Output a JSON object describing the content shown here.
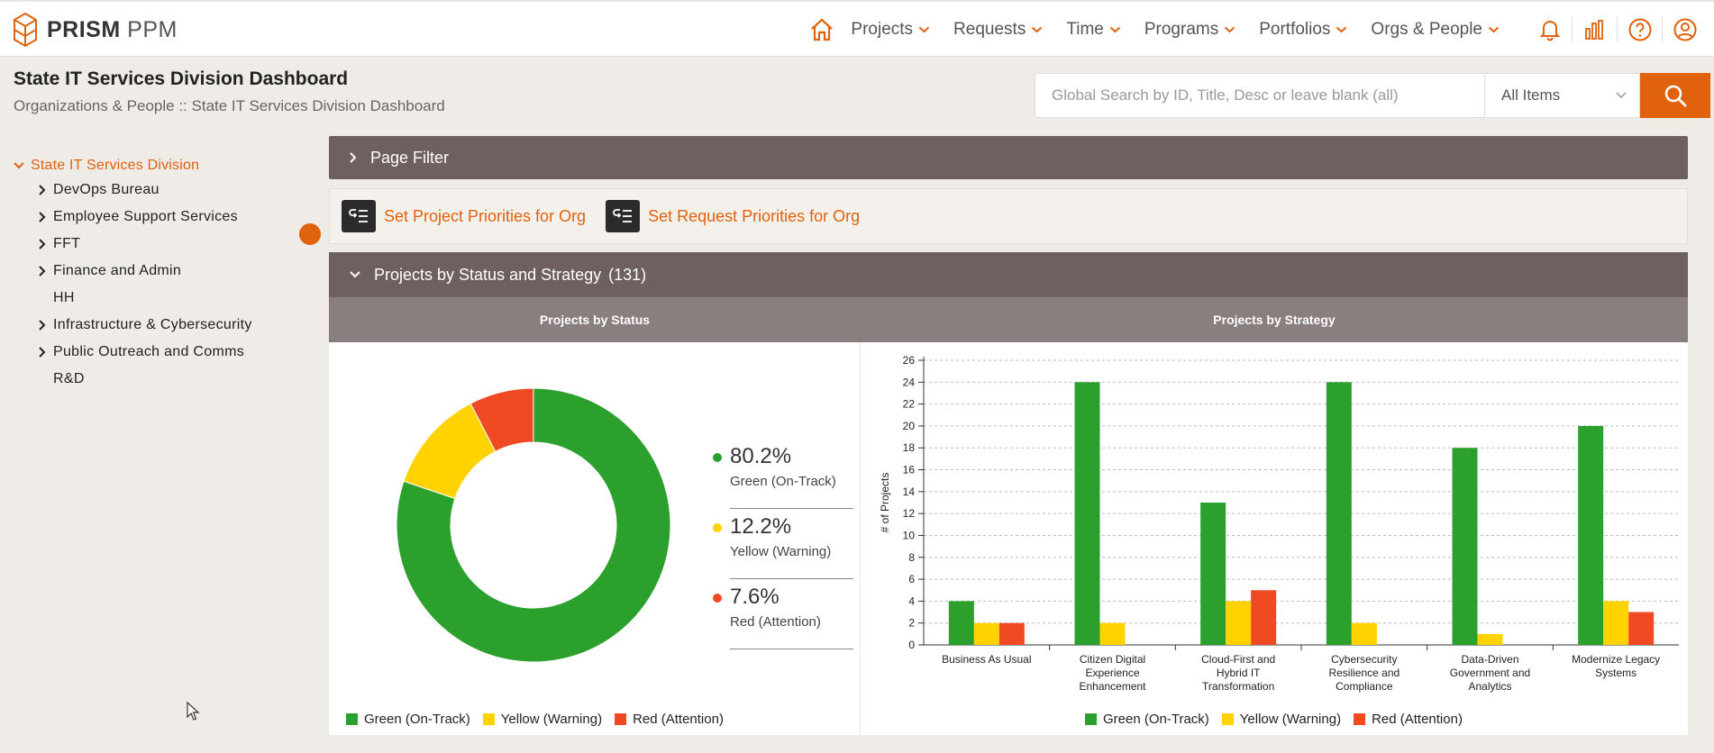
{
  "app": {
    "logo_bold": "PRISM",
    "logo_light": "PPM"
  },
  "nav": {
    "items": [
      {
        "label": "Projects",
        "name": "nav-projects"
      },
      {
        "label": "Requests",
        "name": "nav-requests"
      },
      {
        "label": "Time",
        "name": "nav-time"
      },
      {
        "label": "Programs",
        "name": "nav-programs"
      },
      {
        "label": "Portfolios",
        "name": "nav-portfolios"
      },
      {
        "label": "Orgs & People",
        "name": "nav-orgs-people"
      }
    ]
  },
  "header": {
    "title": "State IT Services Division Dashboard",
    "breadcrumb": "Organizations & People :: State IT Services Division Dashboard"
  },
  "search": {
    "placeholder": "Global Search by ID, Title, Desc or leave blank (all)",
    "value": "",
    "scope": "All Items"
  },
  "tree": {
    "root": "State IT Services Division",
    "nodes": [
      {
        "label": "DevOps Bureau",
        "expandable": true
      },
      {
        "label": "Employee Support Services",
        "expandable": true
      },
      {
        "label": "FFT",
        "expandable": true
      },
      {
        "label": "Finance and Admin",
        "expandable": true
      },
      {
        "label": "HH",
        "expandable": false
      },
      {
        "label": "Infrastructure & Cybersecurity",
        "expandable": true
      },
      {
        "label": "Public Outreach and Comms",
        "expandable": true
      },
      {
        "label": "R&D",
        "expandable": false
      }
    ]
  },
  "filter": {
    "label": "Page Filter"
  },
  "actions": {
    "project_priorities": "Set Project Priorities for Org",
    "request_priorities": "Set Request Priorities for Org"
  },
  "status_panel": {
    "title": "Projects by Status and Strategy",
    "count": "(131)",
    "left_heading": "Projects by Status",
    "right_heading": "Projects by Strategy"
  },
  "colors": {
    "accent": "#e0620d",
    "green": "#2ca02c",
    "yellow": "#ffd200",
    "red": "#f04a23",
    "panel": "#6f6060"
  },
  "chart_data": [
    {
      "type": "pie",
      "title": "Projects by Status",
      "labels": [
        "Green (On-Track)",
        "Yellow (Warning)",
        "Red (Attention)"
      ],
      "values": [
        80.2,
        12.2,
        7.6
      ],
      "value_labels": [
        "80.2%",
        "12.2%",
        "7.6%"
      ],
      "colors": [
        "#2ca02c",
        "#ffd200",
        "#f04a23"
      ],
      "legend": "bottom"
    },
    {
      "type": "bar",
      "title": "Projects by Strategy",
      "ylabel": "# of Projects",
      "ylim": [
        0,
        26
      ],
      "yticks": [
        0,
        2,
        4,
        6,
        8,
        10,
        12,
        14,
        16,
        18,
        20,
        22,
        24,
        26
      ],
      "categories": [
        [
          "Business As Usual"
        ],
        [
          "Citizen Digital",
          "Experience",
          "Enhancement"
        ],
        [
          "Cloud-First and",
          "Hybrid IT",
          "Transformation"
        ],
        [
          "Cybersecurity",
          "Resilience and",
          "Compliance"
        ],
        [
          "Data-Driven",
          "Government and",
          "Analytics"
        ],
        [
          "Modernize Legacy",
          "Systems"
        ]
      ],
      "series": [
        {
          "name": "Green (On-Track)",
          "color": "#2ca02c",
          "values": [
            4,
            24,
            13,
            24,
            18,
            20
          ]
        },
        {
          "name": "Yellow (Warning)",
          "color": "#ffd200",
          "values": [
            2,
            2,
            4,
            2,
            1,
            4
          ]
        },
        {
          "name": "Red (Attention)",
          "color": "#f04a23",
          "values": [
            2,
            0,
            5,
            0,
            0,
            3
          ]
        }
      ],
      "grid": true,
      "legend": "bottom"
    }
  ]
}
